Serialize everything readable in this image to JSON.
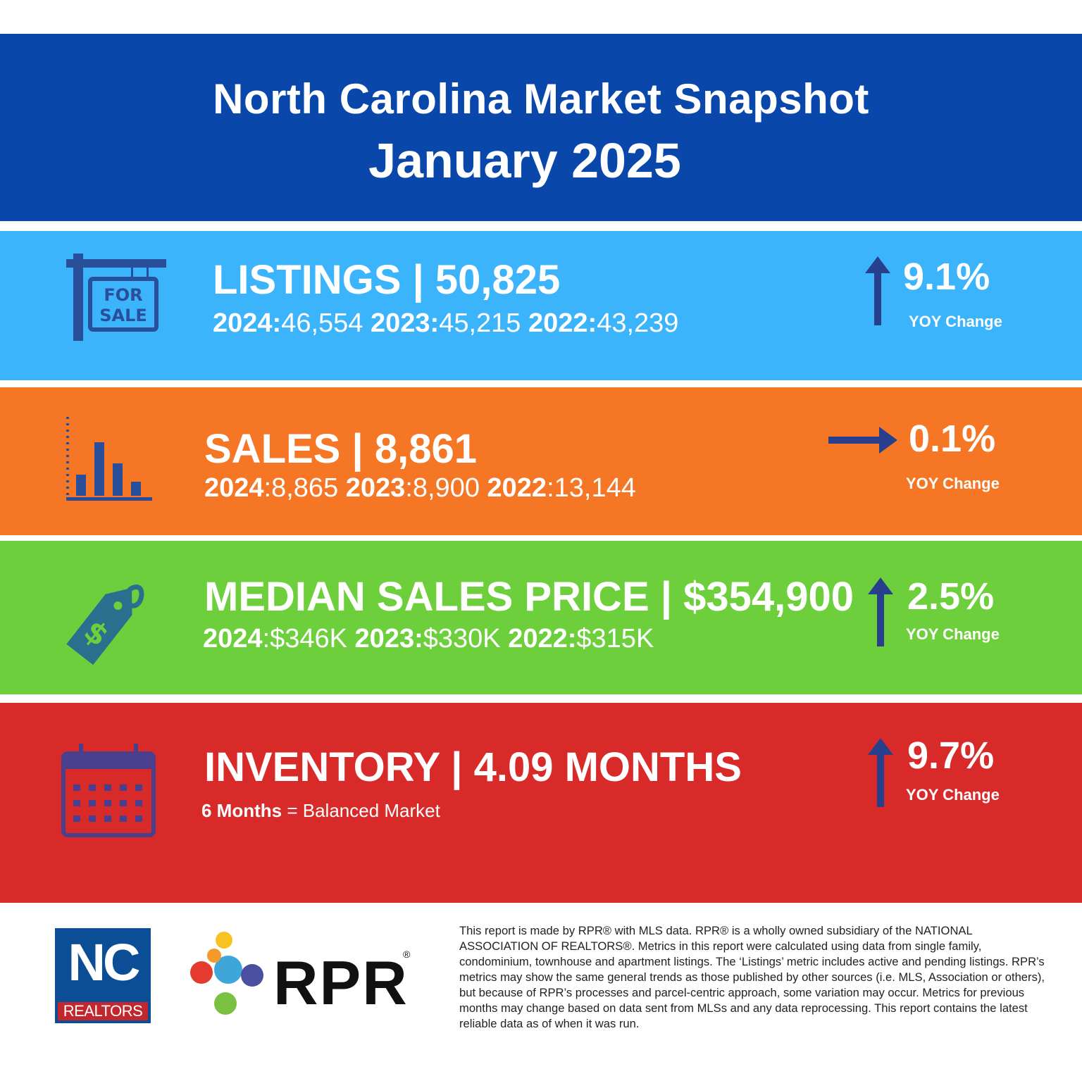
{
  "header": {
    "title": "North Carolina Market Snapshot",
    "period": "January 2025"
  },
  "metrics": [
    {
      "icon": "for-sale-sign-icon",
      "title": "LISTINGS | 50,825",
      "history": [
        {
          "year": "2024:",
          "value": "46,554"
        },
        {
          "year": "2023:",
          "value": "45,215"
        },
        {
          "year": "2022:",
          "value": "43,239"
        }
      ],
      "change": "9.1%",
      "direction": "up",
      "change_label": "YOY Change"
    },
    {
      "icon": "bar-chart-icon",
      "title": "SALES | 8,861",
      "history": [
        {
          "year": "2024",
          "value": ":8,865"
        },
        {
          "year": "2023",
          "value": ":8,900"
        },
        {
          "year": "2022",
          "value": ":13,144"
        }
      ],
      "change": "0.1%",
      "direction": "flat",
      "change_label": "YOY Change"
    },
    {
      "icon": "price-tag-icon",
      "title": "MEDIAN SALES PRICE | $354,900",
      "history": [
        {
          "year": "2024",
          "value": ":$346K"
        },
        {
          "year": "2023:",
          "value": "$330K"
        },
        {
          "year": "2022:",
          "value": "$315K"
        }
      ],
      "change": "2.5%",
      "direction": "up",
      "change_label": "YOY Change"
    },
    {
      "icon": "calendar-icon",
      "title": "INVENTORY | 4.09 MONTHS",
      "note_bold": "6 Months",
      "note_rest": " = Balanced Market",
      "change": "9.7%",
      "direction": "up",
      "change_label": "YOY Change"
    }
  ],
  "footer": {
    "nc_logo_text": "NC",
    "nc_logo_sub": "REALTORS",
    "rpr_logo_text": "RPR",
    "rpr_reg": "®",
    "disclaimer": "This report is made by RPR® with MLS data. RPR® is a wholly owned subsidiary of the NATIONAL ASSOCIATION OF REALTORS®. Metrics in this report were calculated using data from single family, condominium, townhouse and apartment listings. The ‘Listings’ metric includes active and pending listings. RPR’s metrics may show the same general trends as those published by other sources (i.e. MLS, Association or others), but because of RPR’s processes and parcel-centric approach, some variation may occur. Metrics for previous months may change based on data sent from MLSs and any data reprocessing. This report contains the latest reliable data as of when it was run."
  },
  "colors": {
    "header": "#0a47ab",
    "listings": "#3cb4fb",
    "sales": "#f57624",
    "median_price": "#6dcf3c",
    "inventory": "#d92a2a",
    "icon_ink": "#2a4f9a",
    "arrow": "#283f8c"
  }
}
